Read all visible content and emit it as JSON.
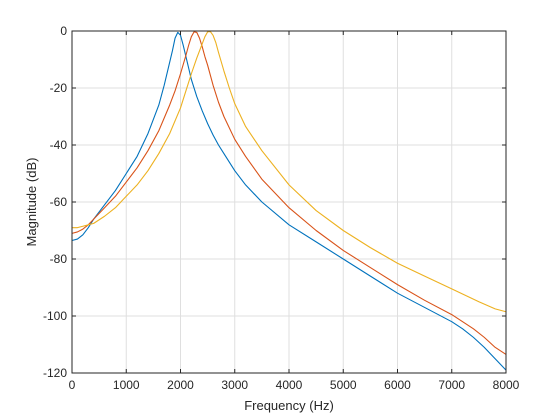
{
  "chart_data": {
    "type": "line",
    "title": "",
    "xlabel": "Frequency (Hz)",
    "ylabel": "Magnitude (dB)",
    "xlim": [
      0,
      8000
    ],
    "ylim": [
      -120,
      0
    ],
    "xticks": [
      0,
      1000,
      2000,
      3000,
      4000,
      5000,
      6000,
      7000,
      8000
    ],
    "yticks": [
      0,
      -20,
      -40,
      -60,
      -80,
      -100,
      -120
    ],
    "xtick_labels": [
      "0",
      "1000",
      "2000",
      "3000",
      "4000",
      "5000",
      "6000",
      "7000",
      "8000"
    ],
    "ytick_labels": [
      "0",
      "-20",
      "-40",
      "-60",
      "-80",
      "-100",
      "-120"
    ],
    "grid": true,
    "legend": "none",
    "series": [
      {
        "color": "#0072BD",
        "x": [
          0,
          100,
          200,
          300,
          400,
          600,
          800,
          1000,
          1200,
          1400,
          1600,
          1700,
          1800,
          1850,
          1900,
          1950,
          2000,
          2050,
          2100,
          2150,
          2200,
          2300,
          2400,
          2500,
          2600,
          2700,
          2800,
          3000,
          3200,
          3500,
          4000,
          4500,
          5000,
          5500,
          6000,
          6500,
          7000,
          7200,
          7400,
          7600,
          7800,
          8000
        ],
        "y": [
          -73.5,
          -73,
          -71.5,
          -69,
          -66,
          -61,
          -56,
          -50,
          -44,
          -36,
          -26,
          -19,
          -11,
          -7,
          -2.5,
          -0.5,
          -1.5,
          -5,
          -9,
          -13,
          -17,
          -23,
          -28,
          -32.5,
          -36.5,
          -40,
          -43,
          -49,
          -54,
          -60,
          -68,
          -74,
          -80,
          -86,
          -92,
          -97,
          -102,
          -104.5,
          -107.5,
          -111,
          -115,
          -119
        ]
      },
      {
        "color": "#D95319",
        "x": [
          0,
          100,
          200,
          300,
          400,
          600,
          800,
          1000,
          1200,
          1400,
          1600,
          1800,
          1900,
          2000,
          2100,
          2150,
          2200,
          2250,
          2300,
          2350,
          2400,
          2450,
          2500,
          2600,
          2700,
          2800,
          3000,
          3200,
          3500,
          4000,
          4500,
          5000,
          5500,
          6000,
          6500,
          7000,
          7200,
          7400,
          7600,
          7800,
          8000
        ],
        "y": [
          -71,
          -70.5,
          -69.5,
          -68,
          -66,
          -62,
          -58,
          -53,
          -48,
          -42,
          -35,
          -26,
          -21,
          -15,
          -8.5,
          -5,
          -2,
          -0.3,
          -0.5,
          -2.5,
          -5.5,
          -9,
          -12,
          -19,
          -25,
          -30,
          -38,
          -44,
          -52,
          -62,
          -70,
          -77,
          -83,
          -89,
          -94.5,
          -99.5,
          -102,
          -104.5,
          -107.5,
          -111,
          -113.5
        ]
      },
      {
        "color": "#EDB120",
        "x": [
          0,
          100,
          200,
          300,
          400,
          600,
          800,
          1000,
          1200,
          1400,
          1600,
          1800,
          2000,
          2100,
          2200,
          2300,
          2400,
          2450,
          2500,
          2550,
          2600,
          2650,
          2700,
          2800,
          2900,
          3000,
          3200,
          3500,
          4000,
          4500,
          5000,
          5500,
          6000,
          6500,
          7000,
          7500,
          7800,
          8000
        ],
        "y": [
          -69,
          -69,
          -68.5,
          -68,
          -67.5,
          -65,
          -62,
          -58,
          -54,
          -49,
          -43,
          -36,
          -27,
          -21,
          -15,
          -9.5,
          -4.5,
          -2,
          -0.3,
          -0.2,
          -1.5,
          -4,
          -7.5,
          -14,
          -20,
          -25.5,
          -33.5,
          -42,
          -54,
          -63,
          -70,
          -76,
          -81.5,
          -86,
          -90.5,
          -95,
          -97.5,
          -98.5
        ]
      }
    ]
  }
}
